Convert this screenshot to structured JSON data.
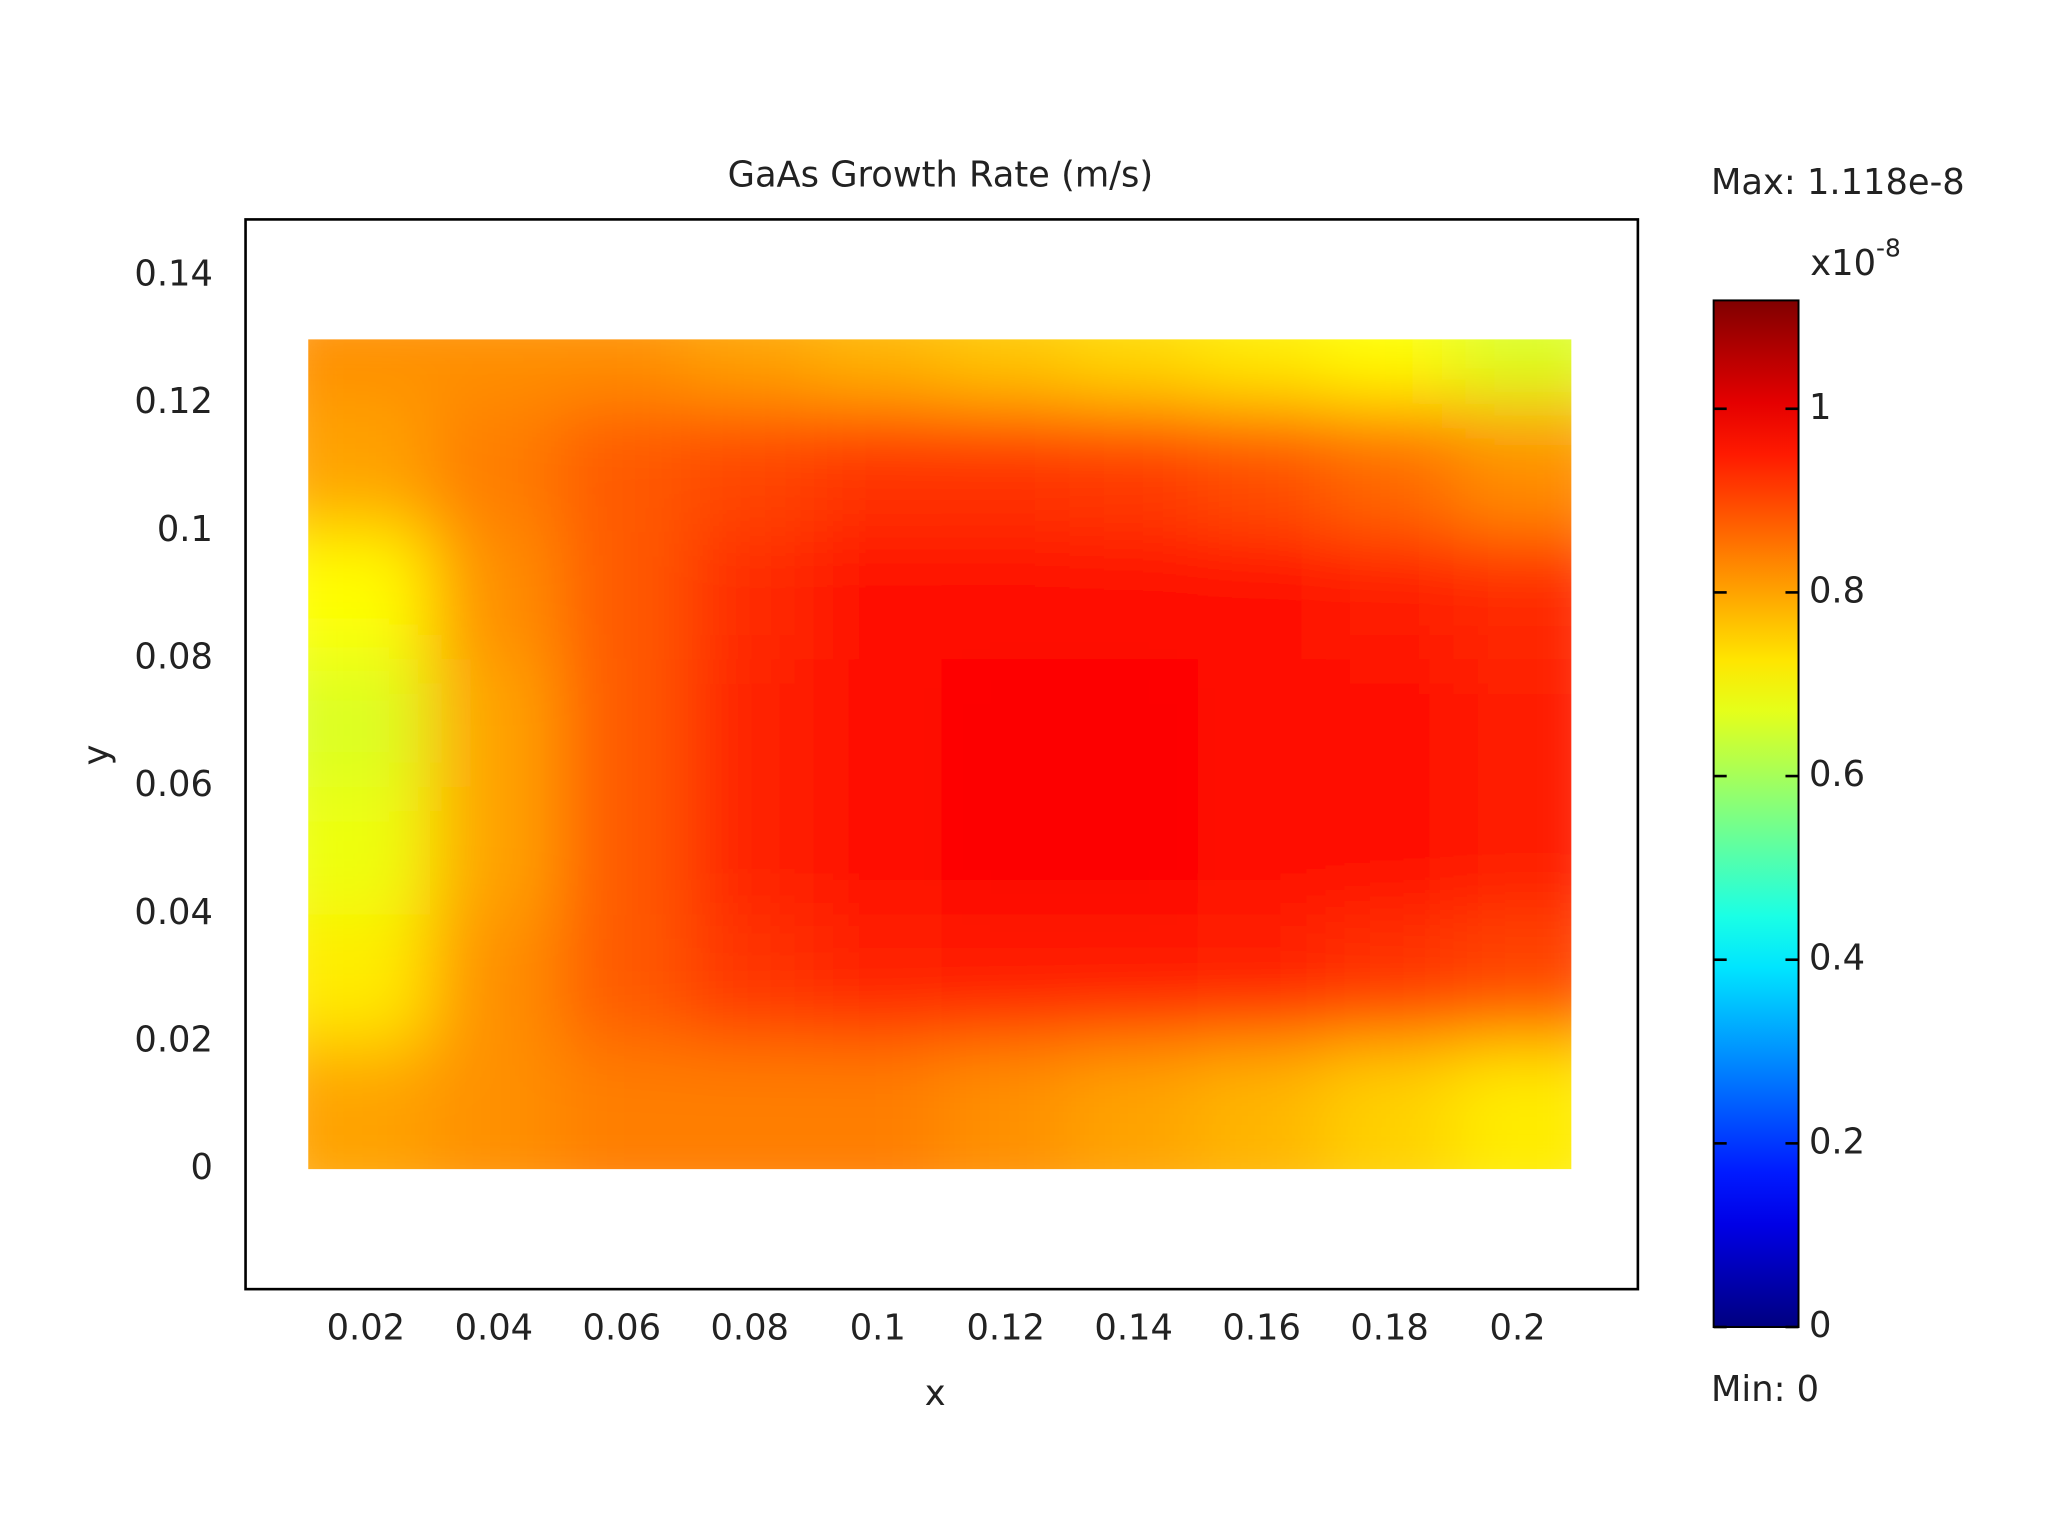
{
  "chart_data": {
    "type": "heatmap",
    "title": "GaAs Growth Rate (m/s)",
    "x_label": "x",
    "y_label": "y",
    "xlim": [
      0.0012,
      0.2188
    ],
    "ylim": [
      -0.0188,
      0.1488
    ],
    "xticks": [
      0.02,
      0.04,
      0.06,
      0.08,
      0.1,
      0.12,
      0.14,
      0.16,
      0.18,
      0.2
    ],
    "yticks": [
      0,
      0.02,
      0.04,
      0.06,
      0.08,
      0.1,
      0.12,
      0.14
    ],
    "xbins": [
      0.011,
      0.03,
      0.05,
      0.07,
      0.09,
      0.11,
      0.13,
      0.15,
      0.17,
      0.19,
      0.2084
    ],
    "ybins": [
      0,
      0.02,
      0.04,
      0.06,
      0.08,
      0.1,
      0.12,
      0.13
    ],
    "values": [
      [
        0.8,
        0.82,
        0.84,
        0.84,
        0.84,
        0.82,
        0.8,
        0.78,
        0.75,
        0.72
      ],
      [
        0.72,
        0.82,
        0.88,
        0.92,
        0.94,
        0.95,
        0.95,
        0.94,
        0.92,
        0.9
      ],
      [
        0.68,
        0.8,
        0.88,
        0.94,
        0.97,
        0.98,
        0.98,
        0.97,
        0.96,
        0.95
      ],
      [
        0.66,
        0.8,
        0.88,
        0.94,
        0.97,
        0.98,
        0.98,
        0.97,
        0.96,
        0.95
      ],
      [
        0.7,
        0.82,
        0.88,
        0.93,
        0.96,
        0.97,
        0.97,
        0.96,
        0.95,
        0.93
      ],
      [
        0.8,
        0.84,
        0.88,
        0.9,
        0.92,
        0.92,
        0.91,
        0.89,
        0.86,
        0.82
      ],
      [
        0.82,
        0.82,
        0.82,
        0.8,
        0.78,
        0.76,
        0.74,
        0.72,
        0.7,
        0.66
      ]
    ],
    "colormap": "jet",
    "zlim": [
      0,
      1.118
    ],
    "zticks": [
      0,
      0.2,
      0.4,
      0.6,
      0.8,
      1
    ],
    "colorbar_multiplier": {
      "base": "x10",
      "exponent": "-8"
    },
    "max_label": "Max: 1.118e-8",
    "min_label": "Min: 0"
  }
}
